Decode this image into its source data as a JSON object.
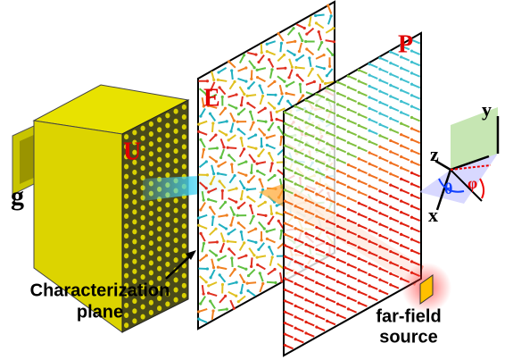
{
  "labels": {
    "feed": "g",
    "metasurface": "U",
    "field_plane": "E",
    "far_plane": "P",
    "plane_caption": [
      "Characterization",
      "plane"
    ],
    "source_caption": [
      "far-field",
      "source"
    ],
    "axes": {
      "y": "y",
      "z": "z",
      "x": "x",
      "theta": "θ",
      "phi": "φ"
    }
  }
}
